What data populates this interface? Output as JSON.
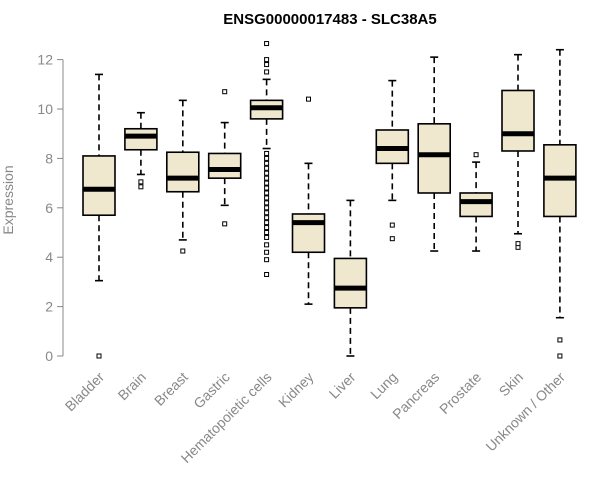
{
  "chart_data": {
    "type": "boxplot",
    "title": "ENSG00000017483 - SLC38A5",
    "xlabel": "",
    "ylabel": "Expression",
    "ylim": [
      0,
      12.6
    ],
    "yticks": [
      0,
      2,
      4,
      6,
      8,
      10,
      12
    ],
    "box_fill": "#efe8cf",
    "categories": [
      "Bladder",
      "Brain",
      "Breast",
      "Gastric",
      "Hematopoietic cells",
      "Kidney",
      "Liver",
      "Lung",
      "Pancreas",
      "Prostate",
      "Skin",
      "Unknown / Other"
    ],
    "boxes": [
      {
        "low": 3.05,
        "q1": 5.7,
        "median": 6.75,
        "q3": 8.1,
        "high": 11.4,
        "outliers": [
          0.0
        ]
      },
      {
        "low": 7.35,
        "q1": 8.35,
        "median": 8.9,
        "q3": 9.2,
        "high": 9.85,
        "outliers": [
          6.85,
          7.05
        ]
      },
      {
        "low": 4.7,
        "q1": 6.65,
        "median": 7.2,
        "q3": 8.25,
        "high": 10.35,
        "outliers": [
          4.25
        ]
      },
      {
        "low": 6.1,
        "q1": 7.2,
        "median": 7.55,
        "q3": 8.2,
        "high": 9.45,
        "outliers": [
          5.35,
          10.7
        ]
      },
      {
        "low": 8.4,
        "q1": 9.6,
        "median": 10.05,
        "q3": 10.35,
        "high": 11.2,
        "outliers": [
          3.3,
          3.9,
          4.2,
          4.5,
          4.8,
          5.0,
          5.2,
          5.4,
          5.6,
          5.8,
          6.0,
          6.2,
          6.4,
          6.6,
          6.8,
          7.0,
          7.2,
          7.4,
          7.6,
          7.8,
          8.0,
          8.2,
          11.5,
          11.8,
          12.0,
          12.65
        ]
      },
      {
        "low": 2.1,
        "q1": 4.2,
        "median": 5.4,
        "q3": 5.75,
        "high": 7.8,
        "outliers": [
          10.4
        ]
      },
      {
        "low": 0.0,
        "q1": 1.95,
        "median": 2.75,
        "q3": 3.95,
        "high": 6.3,
        "outliers": []
      },
      {
        "low": 6.3,
        "q1": 7.8,
        "median": 8.4,
        "q3": 9.15,
        "high": 11.15,
        "outliers": [
          4.75,
          5.3
        ]
      },
      {
        "low": 4.25,
        "q1": 6.6,
        "median": 8.15,
        "q3": 9.4,
        "high": 12.1,
        "outliers": []
      },
      {
        "low": 4.25,
        "q1": 5.65,
        "median": 6.25,
        "q3": 6.6,
        "high": 7.85,
        "outliers": [
          8.15
        ]
      },
      {
        "low": 4.95,
        "q1": 8.3,
        "median": 9.0,
        "q3": 10.75,
        "high": 12.2,
        "outliers": [
          4.4,
          4.55
        ]
      },
      {
        "low": 1.55,
        "q1": 5.65,
        "median": 7.2,
        "q3": 8.55,
        "high": 12.4,
        "outliers": [
          0.0,
          0.65
        ]
      }
    ]
  }
}
